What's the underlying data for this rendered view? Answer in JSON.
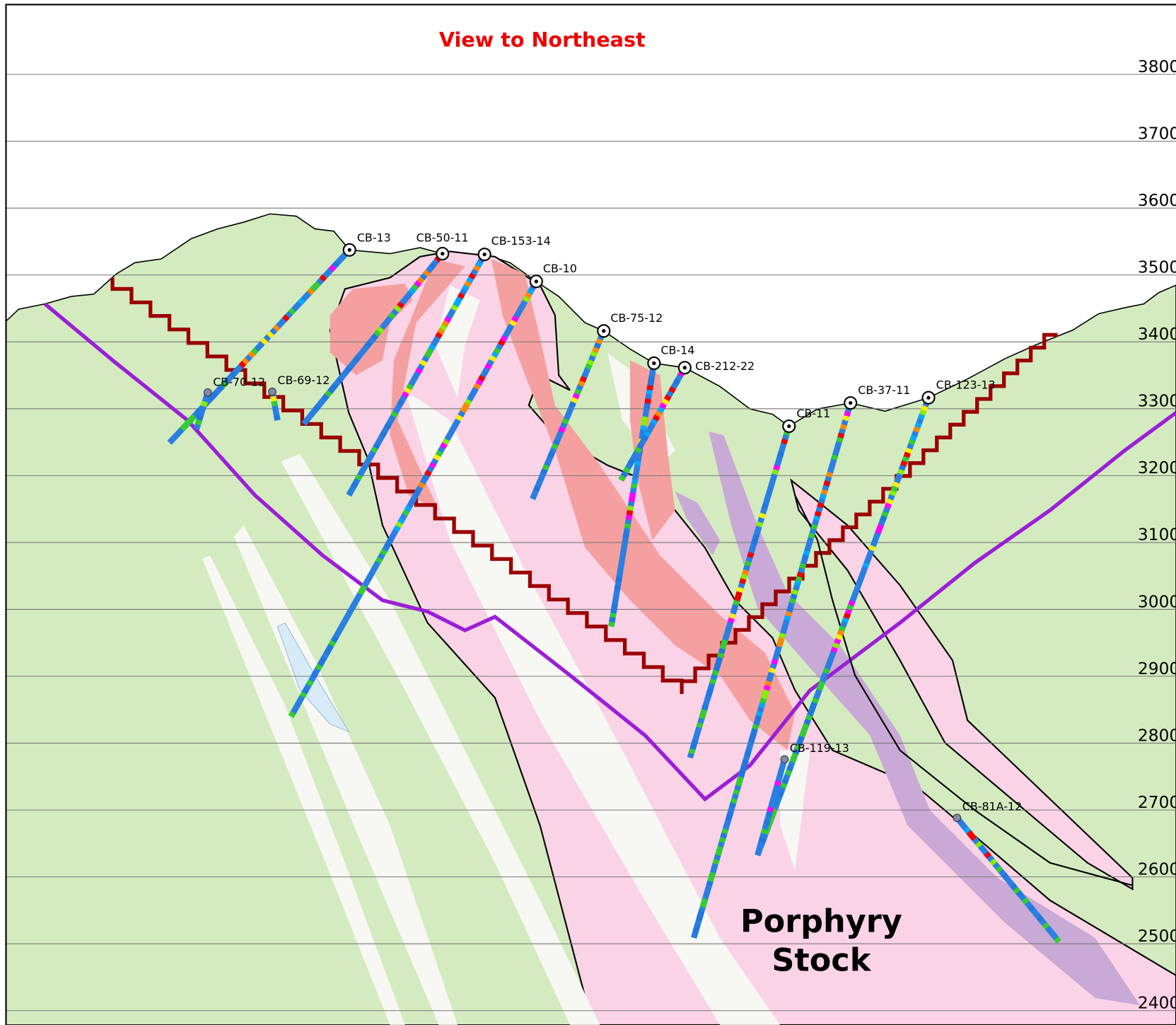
{
  "title": "View to Northeast",
  "elevations": [
    3800,
    3700,
    3600,
    3500,
    3400,
    3300,
    3200,
    3100,
    3000,
    2900,
    2800,
    2700,
    2600,
    2500,
    2400
  ],
  "drill_holes": [
    {
      "name": "CB-13"
    },
    {
      "name": "CB-50-11"
    },
    {
      "name": "CB-153-14"
    },
    {
      "name": "CB-10"
    },
    {
      "name": "CB-75-12"
    },
    {
      "name": "CB-14"
    },
    {
      "name": "CB-212-22"
    },
    {
      "name": "CB-11"
    },
    {
      "name": "CB-37-11"
    },
    {
      "name": "CB-123-13"
    },
    {
      "name": "CB-70-12"
    },
    {
      "name": "CB-69-12"
    },
    {
      "name": "CB-119-13"
    },
    {
      "name": "CB-81A-12"
    }
  ],
  "unit_label": [
    "Porphyry",
    "Stock"
  ]
}
